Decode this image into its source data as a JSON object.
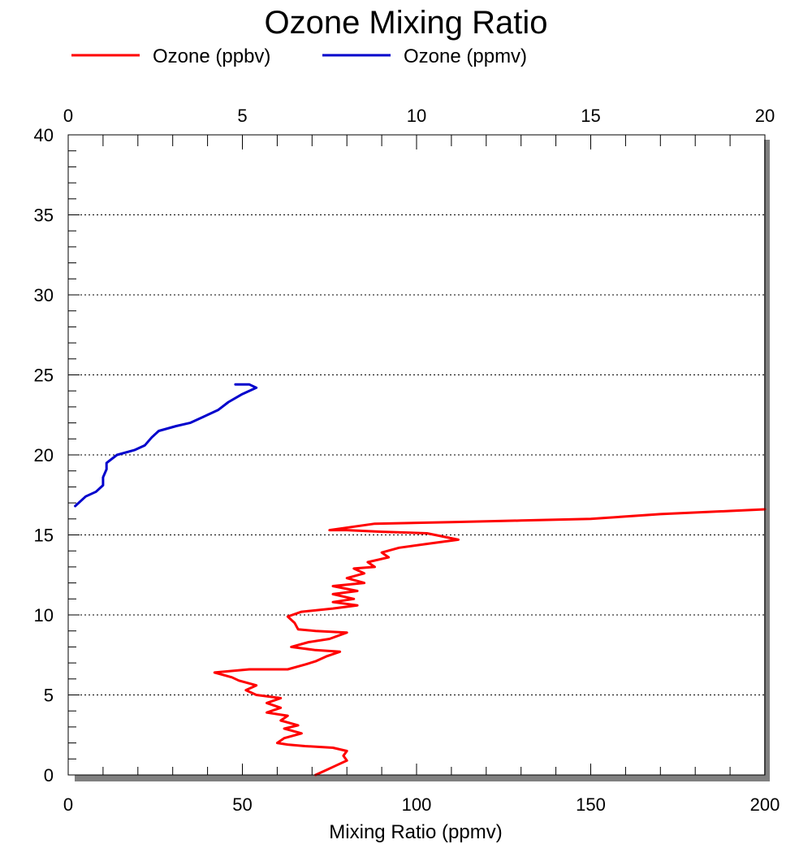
{
  "chart_data": {
    "type": "line",
    "title": "Ozone Mixing Ratio",
    "xlabel": "Mixing Ratio (ppmv)",
    "ylabel": "",
    "xlim_bottom": [
      0,
      200
    ],
    "xlim_top": [
      0,
      20
    ],
    "ylim": [
      0,
      40
    ],
    "x_ticks_bottom": [
      "0",
      "50",
      "100",
      "150",
      "200"
    ],
    "x_ticks_top": [
      "0",
      "5",
      "10",
      "15",
      "20"
    ],
    "y_ticks": [
      "0",
      "5",
      "10",
      "15",
      "20",
      "25",
      "30",
      "35",
      "40"
    ],
    "grid": "horizontal dotted at major y ticks",
    "legend_position": "top",
    "series": [
      {
        "name": "Ozone (ppbv)",
        "color": "#ff0000",
        "axis": "bottom",
        "points": [
          [
            71,
            0.0
          ],
          [
            74,
            0.3
          ],
          [
            77,
            0.6
          ],
          [
            80,
            0.9
          ],
          [
            79,
            1.2
          ],
          [
            80,
            1.5
          ],
          [
            76,
            1.7
          ],
          [
            68,
            1.8
          ],
          [
            63,
            1.9
          ],
          [
            60,
            2.0
          ],
          [
            62,
            2.3
          ],
          [
            67,
            2.6
          ],
          [
            62,
            2.9
          ],
          [
            66,
            3.1
          ],
          [
            61,
            3.4
          ],
          [
            63,
            3.7
          ],
          [
            57,
            3.9
          ],
          [
            61,
            4.2
          ],
          [
            57,
            4.5
          ],
          [
            61,
            4.8
          ],
          [
            54,
            5.0
          ],
          [
            51,
            5.3
          ],
          [
            54,
            5.6
          ],
          [
            49,
            5.9
          ],
          [
            47,
            6.1
          ],
          [
            42,
            6.4
          ],
          [
            52,
            6.6
          ],
          [
            63,
            6.6
          ],
          [
            68,
            6.9
          ],
          [
            71,
            7.1
          ],
          [
            74,
            7.4
          ],
          [
            78,
            7.7
          ],
          [
            71,
            7.8
          ],
          [
            64,
            8.0
          ],
          [
            69,
            8.3
          ],
          [
            75,
            8.5
          ],
          [
            80,
            8.9
          ],
          [
            71,
            9.0
          ],
          [
            66,
            9.1
          ],
          [
            65,
            9.5
          ],
          [
            63,
            9.9
          ],
          [
            67,
            10.2
          ],
          [
            76,
            10.4
          ],
          [
            83,
            10.6
          ],
          [
            76,
            10.8
          ],
          [
            82,
            11.0
          ],
          [
            76,
            11.3
          ],
          [
            83,
            11.5
          ],
          [
            76,
            11.8
          ],
          [
            85,
            12.0
          ],
          [
            80,
            12.3
          ],
          [
            85,
            12.6
          ],
          [
            82,
            12.9
          ],
          [
            88,
            13.0
          ],
          [
            86,
            13.3
          ],
          [
            92,
            13.6
          ],
          [
            90,
            13.9
          ],
          [
            95,
            14.2
          ],
          [
            105,
            14.5
          ],
          [
            112,
            14.7
          ],
          [
            103,
            15.1
          ],
          [
            90,
            15.2
          ],
          [
            80,
            15.3
          ],
          [
            75,
            15.3
          ],
          [
            88,
            15.7
          ],
          [
            110,
            15.8
          ],
          [
            130,
            15.9
          ],
          [
            150,
            16.0
          ],
          [
            170,
            16.3
          ],
          [
            190,
            16.5
          ],
          [
            200,
            16.6
          ]
        ]
      },
      {
        "name": "Ozone (ppmv)",
        "color": "#0000cc",
        "axis": "top",
        "points": [
          [
            0.2,
            16.8
          ],
          [
            0.5,
            17.4
          ],
          [
            0.8,
            17.7
          ],
          [
            1.0,
            18.1
          ],
          [
            1.0,
            18.6
          ],
          [
            1.1,
            19.1
          ],
          [
            1.1,
            19.5
          ],
          [
            1.4,
            20.0
          ],
          [
            1.9,
            20.3
          ],
          [
            2.2,
            20.6
          ],
          [
            2.4,
            21.1
          ],
          [
            2.6,
            21.5
          ],
          [
            3.1,
            21.8
          ],
          [
            3.5,
            22.0
          ],
          [
            3.9,
            22.4
          ],
          [
            4.3,
            22.8
          ],
          [
            4.6,
            23.3
          ],
          [
            5.0,
            23.8
          ],
          [
            5.4,
            24.2
          ],
          [
            5.2,
            24.4
          ],
          [
            4.8,
            24.4
          ]
        ]
      }
    ]
  }
}
